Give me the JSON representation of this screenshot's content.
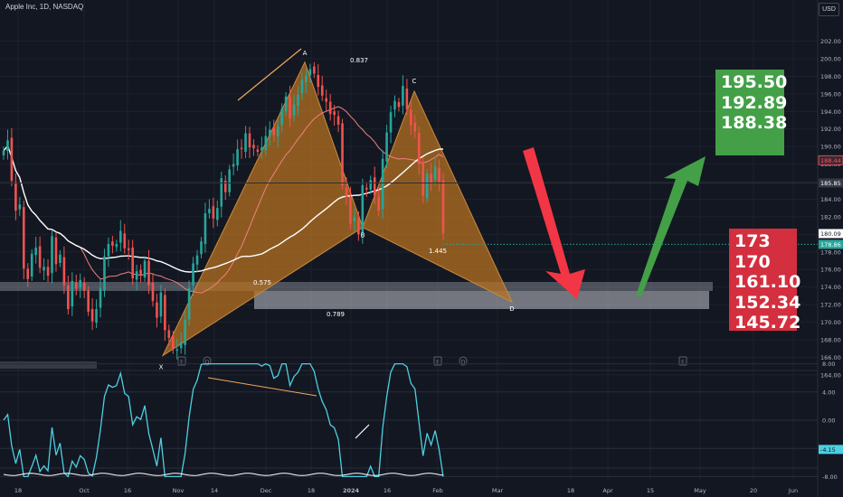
{
  "header": {
    "title": "Apple Inc, 1D, NASDAQ",
    "currency": "USD"
  },
  "colors": {
    "bg": "#131722",
    "up": "#26a69a",
    "down": "#ef5350",
    "harmonic_fill": "#b57222",
    "green": "#43a047",
    "red": "#d32f3f"
  },
  "targets": {
    "upside": [
      "195.50",
      "192.89",
      "188.38"
    ],
    "downside": [
      "173",
      "170",
      "161.10",
      "152.34",
      "145.72"
    ]
  },
  "chart_data": [
    {
      "type": "candlestick",
      "title": "Apple Inc, 1D, NASDAQ",
      "ylim": [
        163,
        203
      ],
      "y_ticks": [
        "202.00",
        "200.00",
        "198.00",
        "196.00",
        "194.00",
        "192.00",
        "190.00",
        "188.00",
        "186.00",
        "184.00",
        "182.00",
        "180.00",
        "178.00",
        "176.00",
        "174.00",
        "172.00",
        "170.00",
        "168.00",
        "166.00",
        "164.00"
      ],
      "x_labels": [
        "18",
        "Oct",
        "16",
        "Nov",
        "14",
        "Dec",
        "18",
        "2024",
        "16",
        "Feb",
        "Mar",
        "18",
        "Apr",
        "15",
        "May",
        "20",
        "Jun"
      ],
      "price_tags": [
        {
          "value": "188.44",
          "kind": "ma"
        },
        {
          "value": "185.85",
          "kind": "line"
        },
        {
          "value": "180.09",
          "kind": "last"
        },
        {
          "value": "178.86",
          "kind": "level"
        }
      ],
      "pattern_points": [
        {
          "label": "X",
          "price": 166.2
        },
        {
          "label": "A",
          "price": 199.6
        },
        {
          "label": "B",
          "price": 180.8
        },
        {
          "label": "C",
          "price": 196.3
        },
        {
          "label": "D",
          "price": 172.3
        }
      ],
      "ratios": [
        "0.837",
        "0.575",
        "0.789",
        "1.445"
      ],
      "events_row": [
        "E",
        "D",
        "E",
        "D",
        "E"
      ],
      "closes": [
        189.5,
        190.7,
        186.1,
        182.7,
        183.4,
        176.1,
        174.9,
        177.8,
        178.5,
        176.2,
        176.3,
        175.3,
        179.8,
        176.6,
        177.7,
        174.2,
        171.5,
        174.7,
        173.8,
        174.8,
        173.6,
        171.2,
        170.1,
        171.5,
        173.9,
        177.5,
        178.9,
        178.7,
        178.9,
        180.4,
        178.4,
        178.2,
        175.0,
        175.8,
        175.4,
        177.0,
        174.2,
        172.4,
        170.5,
        173.4,
        169.1,
        168.2,
        166.9,
        166.9,
        167.7,
        170.3,
        173.9,
        176.7,
        177.6,
        179.2,
        182.4,
        182.9,
        181.8,
        183.0,
        186.4,
        184.8,
        187.4,
        188.0,
        189.7,
        189.7,
        191.5,
        189.9,
        189.8,
        189.4,
        189.9,
        191.2,
        191.9,
        191.3,
        192.3,
        194.3,
        195.7,
        193.2,
        194.8,
        195.9,
        197.6,
        198.1,
        198.8,
        198.3,
        196.8,
        195.8,
        195.1,
        193.7,
        193.6,
        192.5,
        185.6,
        184.3,
        181.2,
        181.9,
        180.0,
        185.6,
        185.1,
        186.2,
        184.4,
        182.7,
        188.6,
        191.6,
        193.9,
        195.2,
        194.5,
        196.9,
        194.2,
        192.4,
        191.7,
        188.0,
        184.4,
        186.9,
        185.9,
        187.7,
        186.0,
        180.1
      ],
      "rsi_panel": {
        "y_ticks": [
          "8.00",
          "4.00",
          "0.00",
          "-4.00",
          "-8.00"
        ],
        "last": "-4.15"
      }
    }
  ]
}
